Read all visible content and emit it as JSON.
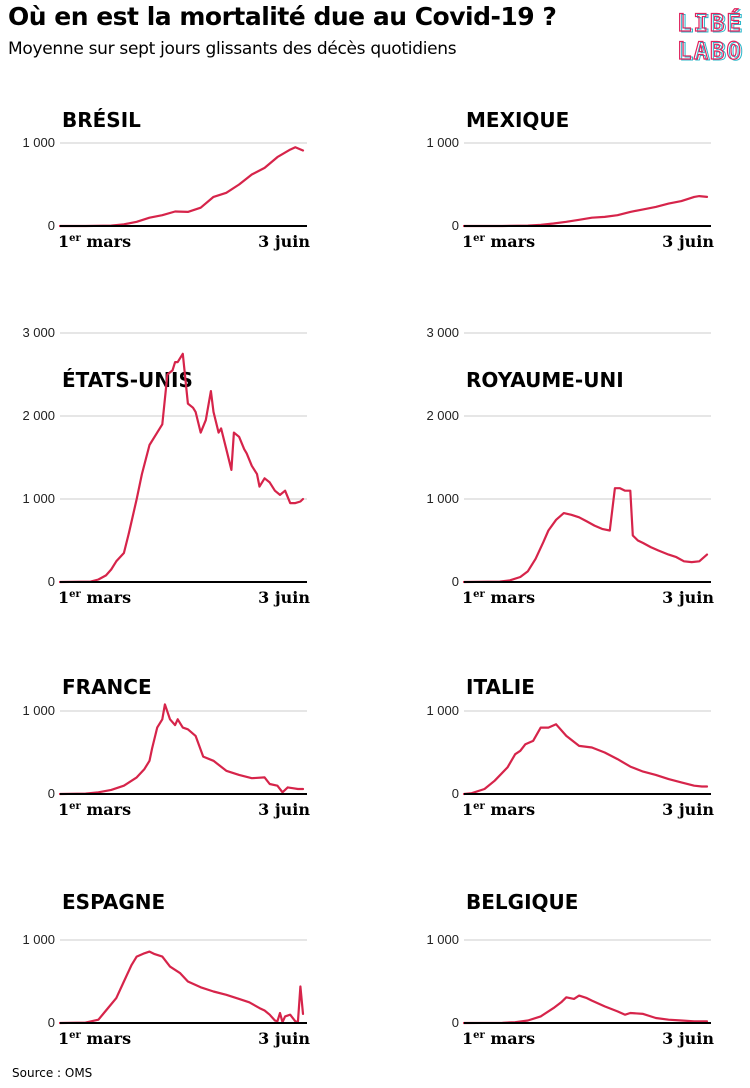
{
  "header": {
    "title": "Où en est la mortalité due au Covid-19 ?",
    "subtitle": "Moyenne sur sept jours glissants des décès quotidiens",
    "logo_top": "LIBÉ",
    "logo_bottom": "LABO"
  },
  "footer": {
    "source": "Source : OMS"
  },
  "colors": {
    "line": "#d6244a",
    "axis": "#000000",
    "grid": "#cccccc",
    "logo_a": "#e0245e",
    "logo_b": "#2ab7ca"
  },
  "chart_data": [
    {
      "type": "line",
      "title": "BRÉSIL",
      "ylim": [
        0,
        1000
      ],
      "yticks": [
        0,
        1000
      ],
      "yticklabels": [
        "0",
        "1 000"
      ],
      "xticklabels": {
        "start_day": "1",
        "start_sup": "er",
        "start_month": "mars",
        "end": "3 juin"
      },
      "series": [
        {
          "x": [
            0,
            10,
            20,
            25,
            30,
            35,
            40,
            45,
            50,
            55,
            60,
            65,
            70,
            75,
            80,
            85,
            90,
            92,
            95
          ],
          "values": [
            0,
            0,
            5,
            20,
            50,
            100,
            130,
            175,
            170,
            220,
            350,
            400,
            500,
            620,
            700,
            830,
            920,
            950,
            910
          ]
        }
      ]
    },
    {
      "type": "line",
      "title": "MEXIQUE",
      "ylim": [
        0,
        1000
      ],
      "yticks": [
        0,
        1000
      ],
      "yticklabels": [
        "0",
        "1 000"
      ],
      "xticklabels": {
        "start_day": "1",
        "start_sup": "er",
        "start_month": "mars",
        "end": "3 juin"
      },
      "series": [
        {
          "x": [
            0,
            15,
            25,
            30,
            35,
            40,
            45,
            50,
            55,
            60,
            65,
            70,
            75,
            80,
            85,
            90,
            92,
            95
          ],
          "values": [
            0,
            0,
            5,
            15,
            30,
            50,
            75,
            100,
            110,
            130,
            170,
            200,
            230,
            270,
            300,
            350,
            360,
            350
          ]
        }
      ]
    },
    {
      "type": "line",
      "title": "ÉTATS-UNIS",
      "ylim": [
        0,
        3000
      ],
      "yticks": [
        0,
        1000,
        2000,
        3000
      ],
      "yticklabels": [
        "0",
        "1 000",
        "2 000",
        "3 000"
      ],
      "xticklabels": {
        "start_day": "1",
        "start_sup": "er",
        "start_month": "mars",
        "end": "3 juin"
      },
      "series": [
        {
          "x": [
            0,
            12,
            15,
            18,
            20,
            22,
            25,
            27,
            30,
            32,
            35,
            38,
            40,
            42,
            44,
            45,
            46,
            48,
            50,
            52,
            53,
            55,
            57,
            59,
            60,
            62,
            63,
            65,
            67,
            68,
            70,
            72,
            73,
            75,
            77,
            78,
            80,
            82,
            84,
            86,
            88,
            90,
            92,
            94,
            95
          ],
          "values": [
            0,
            5,
            30,
            80,
            150,
            250,
            350,
            600,
            1000,
            1300,
            1650,
            1800,
            1900,
            2500,
            2550,
            2650,
            2650,
            2750,
            2150,
            2100,
            2050,
            1800,
            1950,
            2300,
            2050,
            1800,
            1850,
            1600,
            1350,
            1800,
            1750,
            1600,
            1550,
            1400,
            1300,
            1150,
            1250,
            1200,
            1100,
            1050,
            1100,
            950,
            950,
            970,
            1000
          ]
        }
      ]
    },
    {
      "type": "line",
      "title": "ROYAUME-UNI",
      "ylim": [
        0,
        3000
      ],
      "yticks": [
        0,
        1000,
        2000,
        3000
      ],
      "yticklabels": [
        "0",
        "1 000",
        "2 000",
        "3 000"
      ],
      "xticklabels": {
        "start_day": "1",
        "start_sup": "er",
        "start_month": "mars",
        "end": "3 juin"
      },
      "series": [
        {
          "x": [
            0,
            14,
            18,
            22,
            25,
            28,
            31,
            33,
            36,
            39,
            42,
            45,
            48,
            51,
            54,
            57,
            59,
            60,
            61,
            63,
            65,
            66,
            68,
            70,
            73,
            76,
            80,
            83,
            86,
            89,
            92,
            95
          ],
          "values": [
            0,
            5,
            20,
            60,
            130,
            280,
            480,
            620,
            750,
            830,
            810,
            780,
            730,
            680,
            640,
            620,
            1130,
            1130,
            1130,
            1100,
            1100,
            560,
            500,
            470,
            420,
            380,
            330,
            300,
            250,
            240,
            250,
            330
          ]
        }
      ]
    },
    {
      "type": "line",
      "title": "FRANCE",
      "ylim": [
        0,
        1000
      ],
      "yticks": [
        0,
        1000
      ],
      "yticklabels": [
        "0",
        "1 000"
      ],
      "xticklabels": {
        "start_day": "1",
        "start_sup": "er",
        "start_month": "mars",
        "end": "3 juin"
      },
      "series": [
        {
          "x": [
            0,
            10,
            15,
            20,
            25,
            30,
            33,
            35,
            36,
            38,
            40,
            41,
            43,
            45,
            46,
            48,
            50,
            53,
            56,
            60,
            65,
            70,
            75,
            80,
            82,
            85,
            87,
            89,
            91,
            93,
            95
          ],
          "values": [
            0,
            5,
            20,
            50,
            100,
            200,
            300,
            400,
            550,
            800,
            900,
            1080,
            900,
            830,
            900,
            800,
            780,
            700,
            450,
            400,
            280,
            230,
            190,
            200,
            120,
            100,
            20,
            80,
            70,
            60,
            60
          ]
        }
      ]
    },
    {
      "type": "line",
      "title": "ITALIE",
      "ylim": [
        0,
        1000
      ],
      "yticks": [
        0,
        1000
      ],
      "yticklabels": [
        "0",
        "1 000"
      ],
      "xticklabels": {
        "start_day": "1",
        "start_sup": "er",
        "start_month": "mars",
        "end": "3 juin"
      },
      "series": [
        {
          "x": [
            0,
            3,
            8,
            12,
            17,
            20,
            22,
            24,
            27,
            30,
            33,
            36,
            40,
            45,
            50,
            55,
            60,
            65,
            70,
            75,
            80,
            85,
            90,
            93,
            95
          ],
          "values": [
            0,
            10,
            60,
            160,
            320,
            480,
            520,
            600,
            640,
            800,
            800,
            840,
            700,
            580,
            560,
            500,
            420,
            330,
            270,
            230,
            180,
            140,
            100,
            90,
            90
          ]
        }
      ]
    },
    {
      "type": "line",
      "title": "ESPAGNE",
      "ylim": [
        0,
        1000
      ],
      "yticks": [
        0,
        1000
      ],
      "yticklabels": [
        "0",
        "1 000"
      ],
      "xticklabels": {
        "start_day": "1",
        "start_sup": "er",
        "start_month": "mars",
        "end": "3 juin"
      },
      "series": [
        {
          "x": [
            0,
            10,
            15,
            18,
            22,
            25,
            28,
            30,
            33,
            35,
            37,
            40,
            43,
            47,
            50,
            55,
            60,
            65,
            70,
            74,
            78,
            80,
            82,
            84,
            85,
            86,
            87,
            88,
            90,
            92,
            93,
            94,
            95
          ],
          "values": [
            0,
            5,
            40,
            150,
            300,
            500,
            700,
            800,
            840,
            860,
            830,
            800,
            680,
            600,
            500,
            430,
            380,
            340,
            290,
            250,
            180,
            150,
            100,
            30,
            20,
            120,
            10,
            80,
            100,
            20,
            10,
            440,
            110
          ]
        }
      ]
    },
    {
      "type": "line",
      "title": "BELGIQUE",
      "ylim": [
        0,
        1000
      ],
      "yticks": [
        0,
        1000
      ],
      "yticklabels": [
        "0",
        "1 000"
      ],
      "xticklabels": {
        "start_day": "1",
        "start_sup": "er",
        "start_month": "mars",
        "end": "3 juin"
      },
      "series": [
        {
          "x": [
            0,
            15,
            20,
            25,
            30,
            35,
            38,
            40,
            43,
            45,
            48,
            50,
            55,
            60,
            63,
            65,
            70,
            75,
            80,
            85,
            90,
            95
          ],
          "values": [
            0,
            2,
            10,
            30,
            80,
            180,
            250,
            310,
            290,
            330,
            300,
            270,
            200,
            140,
            100,
            120,
            110,
            60,
            40,
            30,
            20,
            20
          ]
        }
      ]
    }
  ]
}
